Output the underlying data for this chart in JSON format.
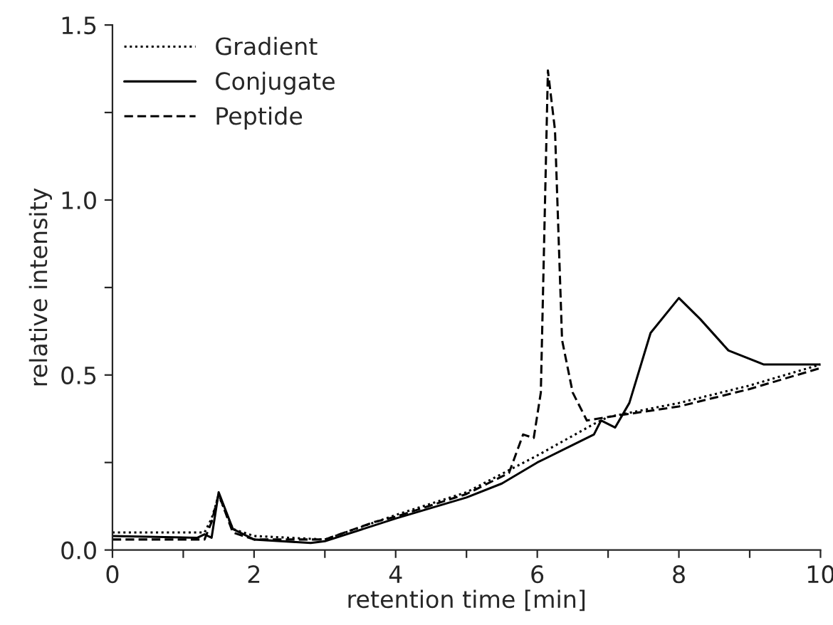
{
  "chart_data": {
    "type": "line",
    "xlabel": "retention time [min]",
    "ylabel": "relative intensity",
    "xlim": [
      0,
      10
    ],
    "ylim": [
      0,
      1.5
    ],
    "xticks": [
      0,
      {
        "value": 1,
        "label": null
      },
      2,
      {
        "value": 3,
        "label": null
      },
      4,
      {
        "value": 5,
        "label": null
      },
      6,
      {
        "value": 7,
        "label": null
      },
      8,
      {
        "value": 9,
        "label": null
      },
      10
    ],
    "yticks": [
      {
        "value": 0,
        "label": "0.0"
      },
      {
        "value": 0.25,
        "label": null
      },
      {
        "value": 0.5,
        "label": "0.5"
      },
      {
        "value": 0.75,
        "label": null
      },
      {
        "value": 1.0,
        "label": "1.0"
      },
      {
        "value": 1.25,
        "label": null
      },
      {
        "value": 1.5,
        "label": "1.5"
      }
    ],
    "legend": "top left",
    "grid": false,
    "series": [
      {
        "name": "Gradient",
        "color": "#000000",
        "line_style": "dotted",
        "x": [
          0,
          1.3,
          1.4,
          1.5,
          1.7,
          2,
          3,
          4,
          5,
          6,
          6.8,
          7,
          8,
          9,
          10
        ],
        "values": [
          0.05,
          0.05,
          0.09,
          0.155,
          0.06,
          0.04,
          0.03,
          0.1,
          0.165,
          0.27,
          0.36,
          0.38,
          0.42,
          0.47,
          0.53
        ]
      },
      {
        "name": "Conjugate",
        "color": "#000000",
        "line_style": "solid",
        "x": [
          0,
          1.2,
          1.3,
          1.4,
          1.5,
          1.7,
          2,
          2.8,
          3,
          4,
          5,
          5.5,
          6,
          6.5,
          6.8,
          6.9,
          7.1,
          7.3,
          7.6,
          8,
          8.3,
          8.7,
          9.2,
          10
        ],
        "values": [
          0.04,
          0.035,
          0.045,
          0.035,
          0.165,
          0.06,
          0.03,
          0.02,
          0.025,
          0.09,
          0.15,
          0.19,
          0.25,
          0.3,
          0.33,
          0.37,
          0.35,
          0.42,
          0.62,
          0.72,
          0.66,
          0.57,
          0.53,
          0.53
        ]
      },
      {
        "name": "Peptide",
        "color": "#000000",
        "line_style": "dashed",
        "x": [
          0,
          1.3,
          1.4,
          1.5,
          1.7,
          2,
          3,
          3.7,
          4,
          5,
          5.6,
          5.8,
          5.95,
          6.05,
          6.15,
          6.25,
          6.35,
          6.5,
          6.7,
          7,
          8,
          9,
          10
        ],
        "values": [
          0.03,
          0.03,
          0.08,
          0.16,
          0.05,
          0.03,
          0.03,
          0.08,
          0.095,
          0.16,
          0.22,
          0.33,
          0.32,
          0.45,
          1.37,
          1.2,
          0.6,
          0.45,
          0.37,
          0.38,
          0.41,
          0.46,
          0.52
        ]
      }
    ]
  }
}
